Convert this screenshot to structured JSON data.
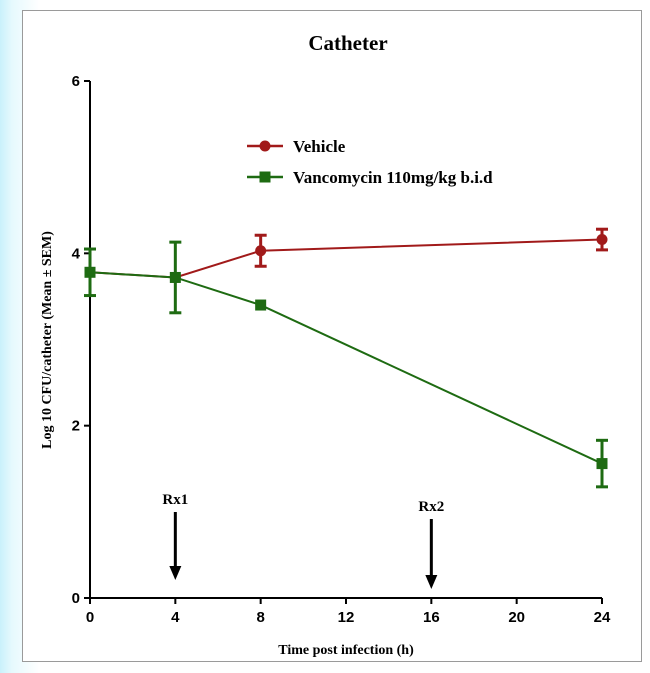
{
  "chart_data": {
    "type": "line",
    "title": "Catheter",
    "xlabel": "Time post infection (h)",
    "ylabel": "Log 10 CFU/catheter (Mean ± SEM)",
    "xlim": [
      0,
      24
    ],
    "ylim": [
      0,
      6
    ],
    "x_ticks": [
      0,
      4,
      8,
      12,
      16,
      20,
      24
    ],
    "y_ticks": [
      0,
      2,
      4,
      6
    ],
    "grid": false,
    "legend_position": "top-center",
    "series": [
      {
        "name": "Vehicle",
        "color": "#a11a1a",
        "marker": "circle",
        "x": [
          0,
          4,
          8,
          24
        ],
        "y": [
          3.78,
          3.72,
          4.03,
          4.16
        ],
        "err": [
          0,
          0,
          0.18,
          0.12
        ]
      },
      {
        "name": "Vancomycin 110mg/kg b.i.d",
        "color": "#1e6b12",
        "marker": "square",
        "x": [
          0,
          4,
          8,
          24
        ],
        "y": [
          3.78,
          3.72,
          3.4,
          1.56
        ],
        "err": [
          0.27,
          0.41,
          0,
          0.27
        ]
      }
    ],
    "annotations": [
      {
        "label": "Rx1",
        "x": 4
      },
      {
        "label": "Rx2",
        "x": 16
      }
    ]
  }
}
